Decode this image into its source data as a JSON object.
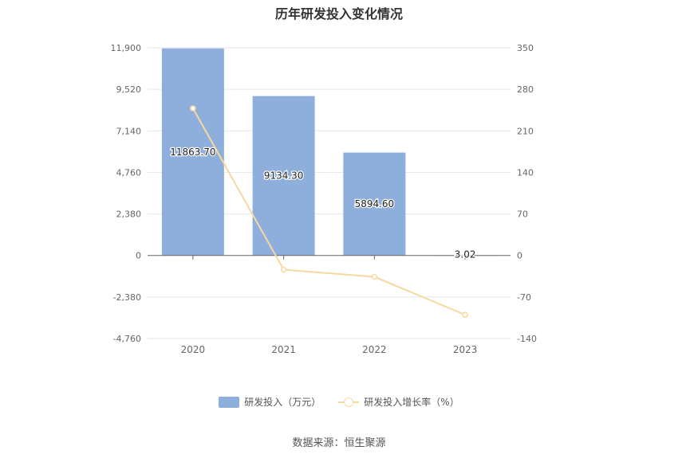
{
  "chart_data": {
    "type": "bar",
    "title": "历年研发投入变化情况",
    "categories": [
      "2020",
      "2021",
      "2022",
      "2023"
    ],
    "series": [
      {
        "name": "研发投入（万元）",
        "type": "bar",
        "axis": "left",
        "values": [
          11863.7,
          9134.3,
          5894.6,
          3.02
        ],
        "labels": [
          "11863.70",
          "9134.30",
          "5894.60",
          "3.02"
        ],
        "color": "#8eafdb"
      },
      {
        "name": "研发投入增长率（%）",
        "type": "line",
        "axis": "right",
        "values": [
          248,
          -24,
          -36,
          -100
        ],
        "color": "#f7d9a0"
      }
    ],
    "y_left": {
      "ticks": [
        11900,
        9520,
        7140,
        4760,
        2380,
        0,
        -2380,
        -4760
      ],
      "tick_labels": [
        "11,900",
        "9,520",
        "7,140",
        "4,760",
        "2,380",
        "0",
        "-2,380",
        "-4,760"
      ],
      "ylim": [
        -4760,
        11900
      ]
    },
    "y_right": {
      "ticks": [
        350,
        280,
        210,
        140,
        70,
        0,
        -70,
        -140
      ],
      "tick_labels": [
        "350",
        "280",
        "210",
        "140",
        "70",
        "0",
        "-70",
        "-140"
      ],
      "ylim": [
        -140,
        350
      ]
    },
    "grid": true,
    "legend_position": "bottom"
  },
  "legend": {
    "bar_label": "研发投入（万元）",
    "line_label": "研发投入增长率（%）"
  },
  "source": "数据来源：恒生聚源"
}
